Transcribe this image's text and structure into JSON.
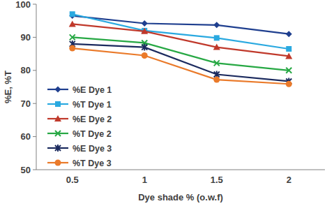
{
  "chart_data": {
    "type": "line",
    "x_label": "Dye shade % (o.w.f)",
    "y_label": "%E, %T",
    "categories": [
      "0.5",
      "1",
      "1.5",
      "2"
    ],
    "ylim": [
      50,
      100
    ],
    "yticks": [
      50,
      60,
      70,
      80,
      90,
      100
    ],
    "grid": false,
    "legend": "left",
    "series": [
      {
        "name": "%E Dye 1",
        "color": "#1f3f8f",
        "marker": "diamond",
        "values": [
          96.5,
          94.2,
          93.7,
          91.0
        ]
      },
      {
        "name": "%T Dye 1",
        "color": "#2aa9e0",
        "marker": "square",
        "values": [
          97.0,
          92.0,
          89.8,
          86.5
        ]
      },
      {
        "name": "%E Dye 2",
        "color": "#c0392b",
        "marker": "triangle",
        "values": [
          94.0,
          91.8,
          87.0,
          84.3
        ]
      },
      {
        "name": "%T Dye 2",
        "color": "#27a844",
        "marker": "x",
        "values": [
          90.0,
          88.3,
          82.2,
          80.0
        ]
      },
      {
        "name": "%E Dye 3",
        "color": "#1b2a5e",
        "marker": "star",
        "values": [
          88.0,
          87.0,
          78.8,
          76.7
        ]
      },
      {
        "name": "%T Dye 3",
        "color": "#ea7a2a",
        "marker": "circle",
        "values": [
          86.7,
          84.5,
          77.2,
          75.9
        ]
      }
    ]
  }
}
